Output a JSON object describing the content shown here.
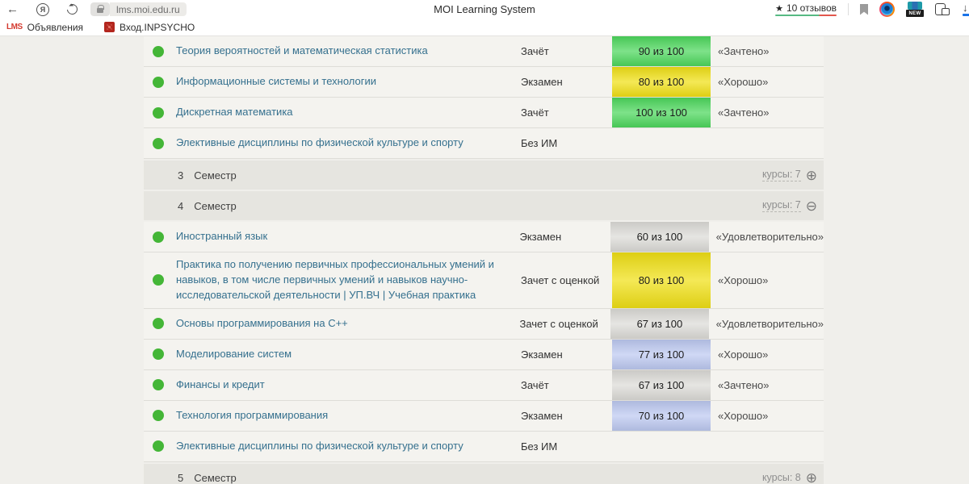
{
  "browser": {
    "url": "lms.moi.edu.ru",
    "page_title": "MOI Learning System",
    "reviews": {
      "star": "★",
      "label": "10 отзывов"
    },
    "bookmarks": [
      {
        "icon_text": "LMS",
        "label": "Объявления"
      },
      {
        "label": "Вход.INPSYCHO"
      }
    ]
  },
  "colors": {
    "score_green": "#4cd75c",
    "score_yellow": "#f0e015",
    "score_gray": "#dcdbd7",
    "score_blue": "#bdc9f1",
    "status_dot_green": "#44b637",
    "course_link_blue": "#35708e",
    "semester_header_bg": "#e6e5e0",
    "reviews_underline_green": "#57ba83",
    "reviews_underline_red": "#e2574c"
  },
  "table": {
    "items": [
      {
        "type": "course",
        "name": "Теория вероятностей и математическая статистика",
        "control": "Зачёт",
        "score": "90 из 100",
        "score_style": "green",
        "grade": "«Зачтено»"
      },
      {
        "type": "course",
        "name": "Информационные системы и технологии",
        "control": "Экзамен",
        "score": "80 из 100",
        "score_style": "yellow",
        "grade": "«Хорошо»"
      },
      {
        "type": "course",
        "name": "Дискретная математика",
        "control": "Зачёт",
        "score": "100 из 100",
        "score_style": "green",
        "grade": "«Зачтено»"
      },
      {
        "type": "course",
        "name": "Элективные дисциплины по физической культуре и спорту",
        "control": "Без ИМ",
        "score": "",
        "score_style": "",
        "grade": ""
      },
      {
        "type": "semester",
        "number": "3",
        "label": "Семестр",
        "courses_label": "курсы: 7",
        "toggle": "expand",
        "toggle_glyph": "⊕"
      },
      {
        "type": "semester",
        "number": "4",
        "label": "Семестр",
        "courses_label": "курсы: 7",
        "toggle": "collapse",
        "toggle_glyph": "⊖"
      },
      {
        "type": "course",
        "name": "Иностранный язык",
        "control": "Экзамен",
        "score": "60 из 100",
        "score_style": "gray",
        "grade": "«Удовлетворительно»"
      },
      {
        "type": "course",
        "name": "Практика по получению первичных профессиональных умений и навыков, в том числе первичных умений и навыков научно-исследовательской деятельности | УП.ВЧ | Учебная практика",
        "control": "Зачет с оценкой",
        "score": "80 из 100",
        "score_style": "yellow",
        "grade": "«Хорошо»"
      },
      {
        "type": "course",
        "name": "Основы программирования на C++",
        "control": "Зачет с оценкой",
        "score": "67 из 100",
        "score_style": "gray",
        "grade": "«Удовлетворительно»"
      },
      {
        "type": "course",
        "name": "Моделирование систем",
        "control": "Экзамен",
        "score": "77 из 100",
        "score_style": "blue",
        "grade": "«Хорошо»"
      },
      {
        "type": "course",
        "name": "Финансы и кредит",
        "control": "Зачёт",
        "score": "67 из 100",
        "score_style": "gray",
        "grade": "«Зачтено»"
      },
      {
        "type": "course",
        "name": "Технология программирования",
        "control": "Экзамен",
        "score": "70 из 100",
        "score_style": "blue",
        "grade": "«Хорошо»"
      },
      {
        "type": "course",
        "name": "Элективные дисциплины по физической культуре и спорту",
        "control": "Без ИМ",
        "score": "",
        "score_style": "",
        "grade": ""
      },
      {
        "type": "semester",
        "number": "5",
        "label": "Семестр",
        "courses_label": "курсы: 8",
        "toggle": "expand",
        "toggle_glyph": "⊕"
      }
    ]
  }
}
